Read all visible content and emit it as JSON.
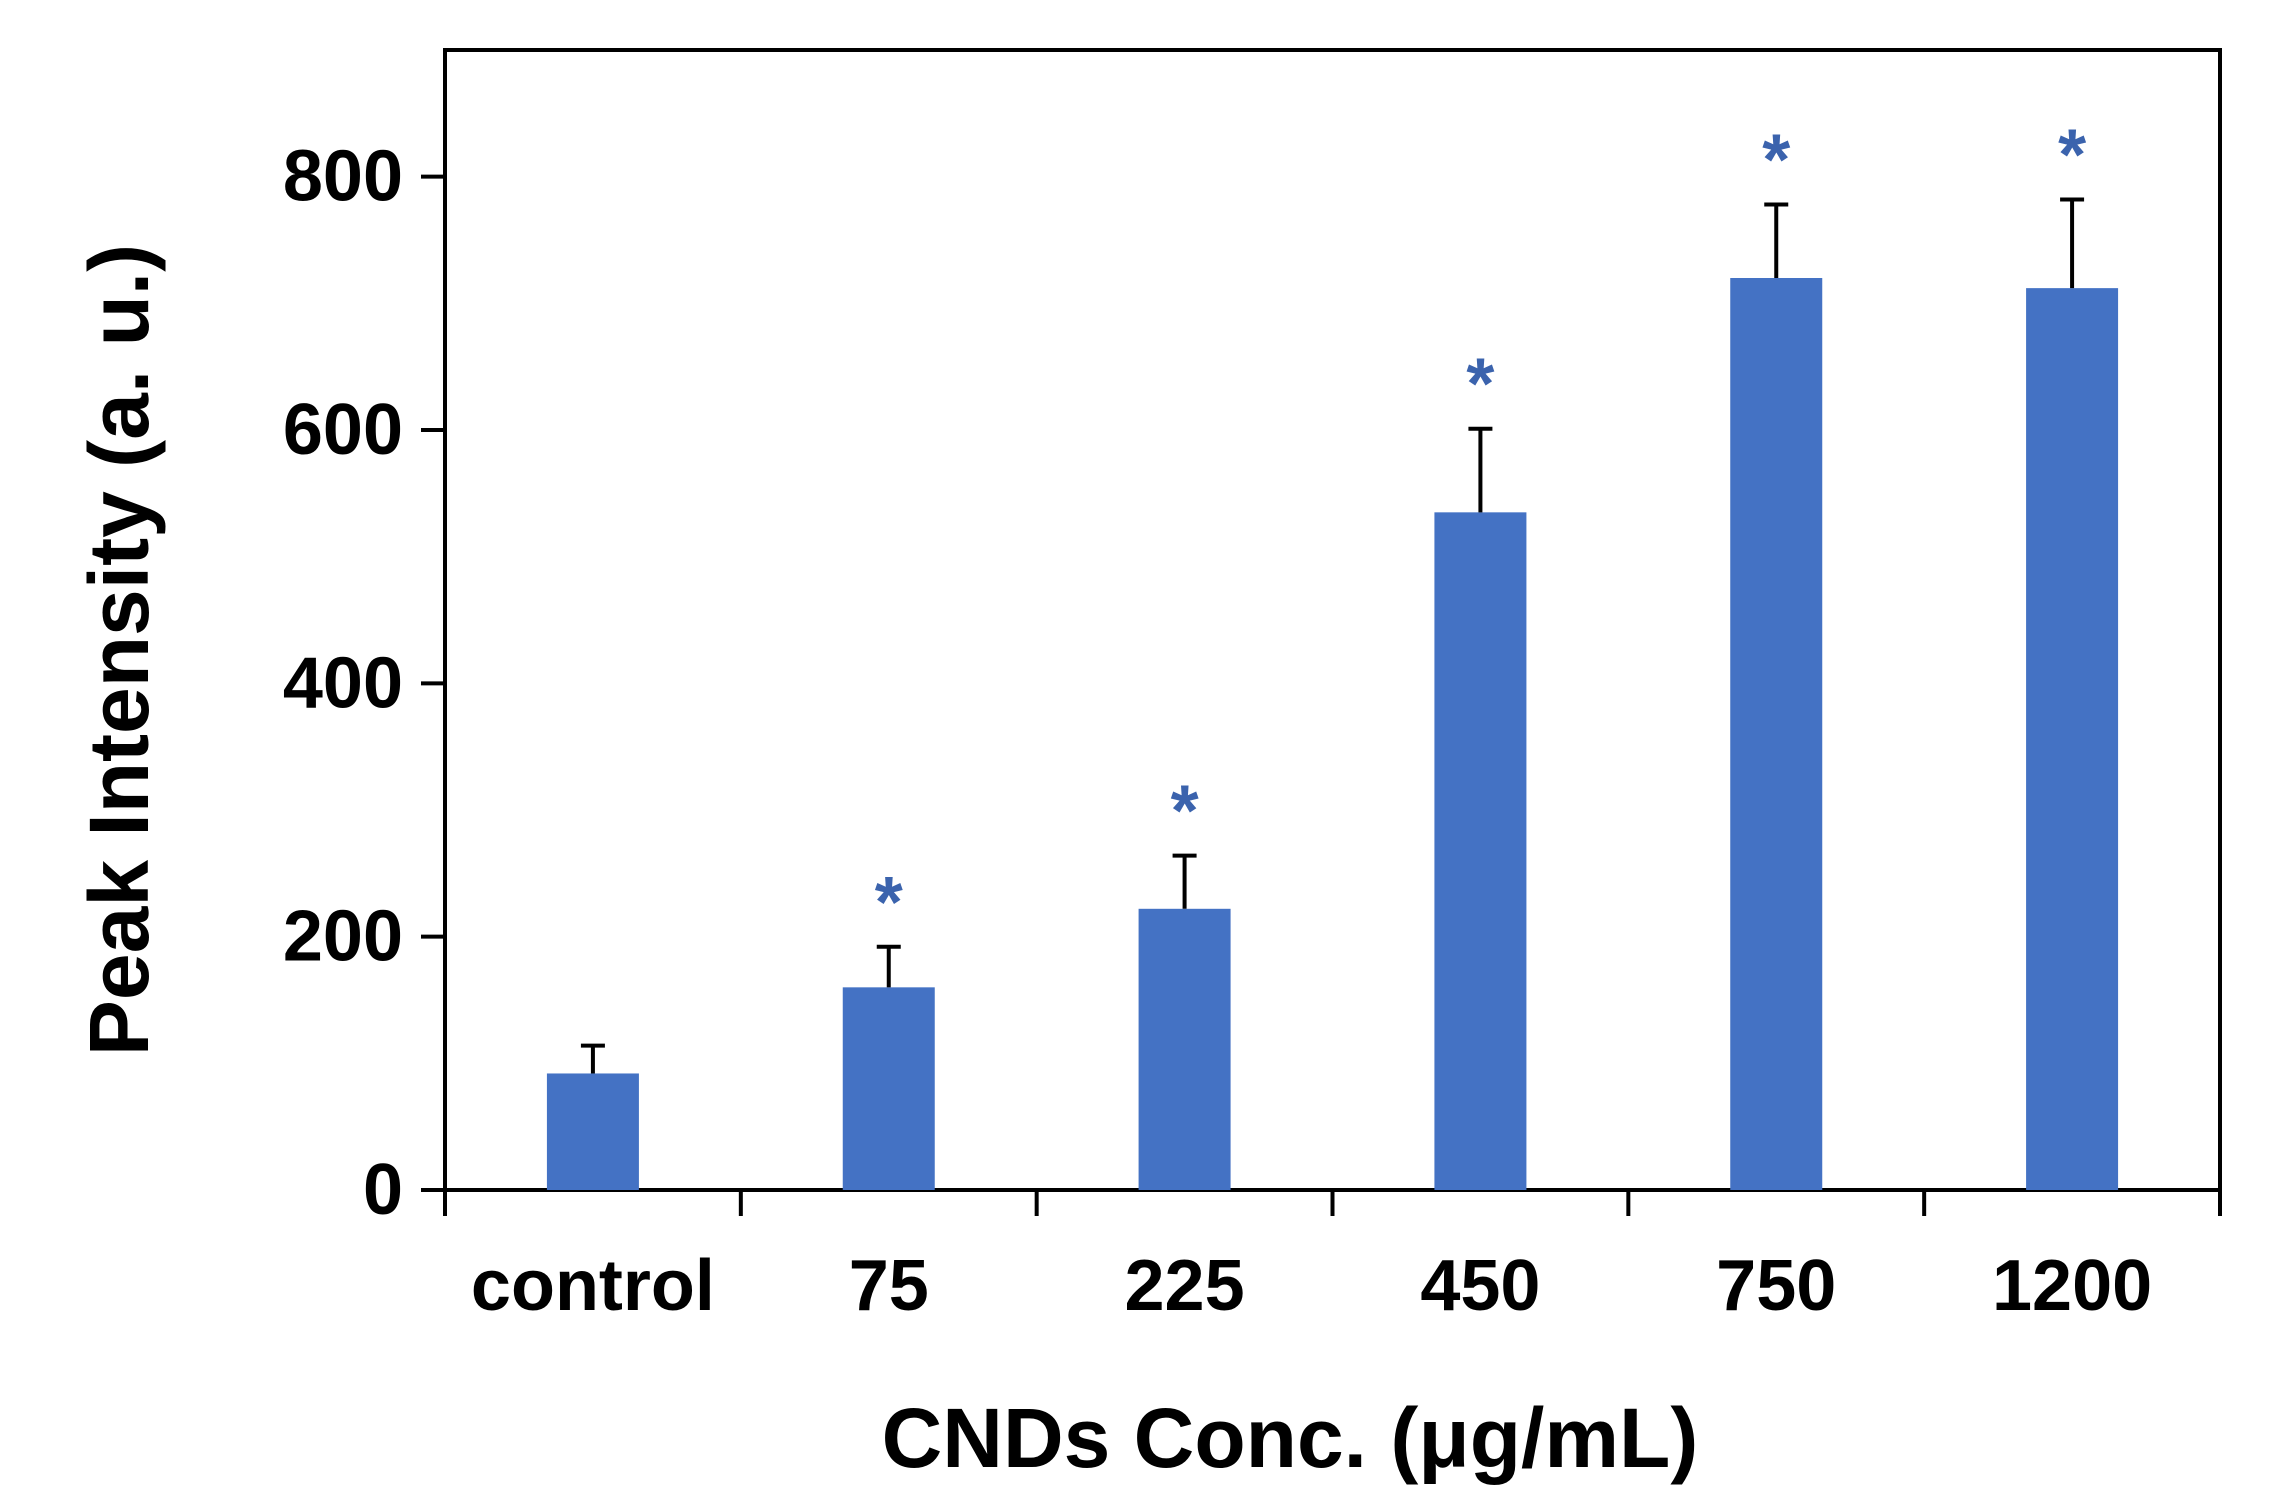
{
  "chart_data": {
    "type": "bar",
    "title": "",
    "xlabel": "CNDs Conc. (μg/mL)",
    "ylabel": "Peak Intensity (a. u.)",
    "ylim": [
      0,
      900
    ],
    "yticks": [
      0,
      200,
      400,
      600,
      800
    ],
    "ytick_labels": [
      "0",
      "200",
      "400",
      "600",
      "800"
    ],
    "categories": [
      "control",
      "75",
      "225",
      "450",
      "750",
      "1200"
    ],
    "values": [
      92,
      160,
      222,
      535,
      720,
      712
    ],
    "errors": [
      22,
      32,
      42,
      66,
      58,
      70
    ],
    "significance": [
      "",
      "*",
      "*",
      "*",
      "*",
      "*"
    ],
    "legend": "none",
    "grid": false
  },
  "colors": {
    "bar": "#4472c4",
    "significance": "#3b63ad",
    "axis": "#000000",
    "error_bar": "#000000"
  }
}
